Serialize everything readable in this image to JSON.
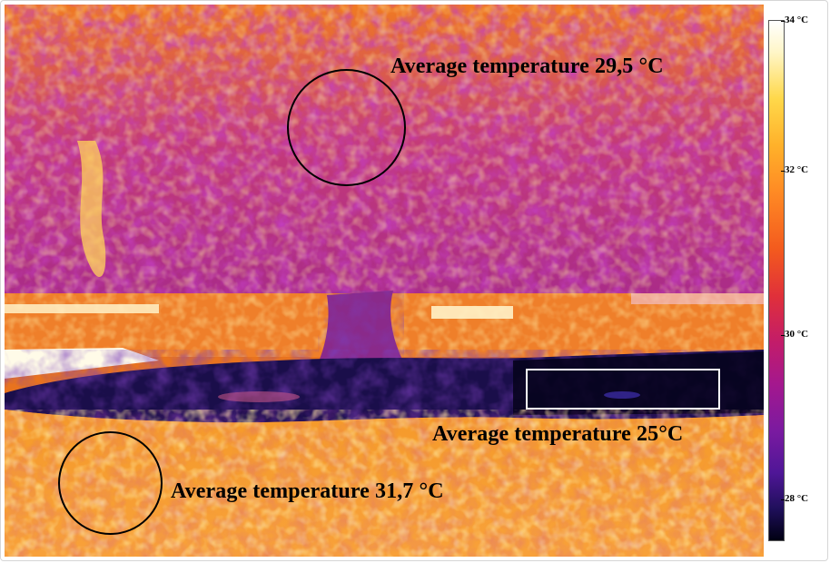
{
  "annotations": {
    "canopy": "Average temperature 29,5 °C",
    "shade": "Average temperature 25°C",
    "ground": "Average temperature 31,7 °C"
  },
  "scale": {
    "ticks": [
      "34 °C",
      "32 °C",
      "30 °C",
      "28 °C"
    ]
  },
  "colors": {
    "hot": "#ffffff",
    "warm": "#ff8a24",
    "mid": "#c21c6a",
    "cool": "#4f1697",
    "cold": "#000012"
  }
}
